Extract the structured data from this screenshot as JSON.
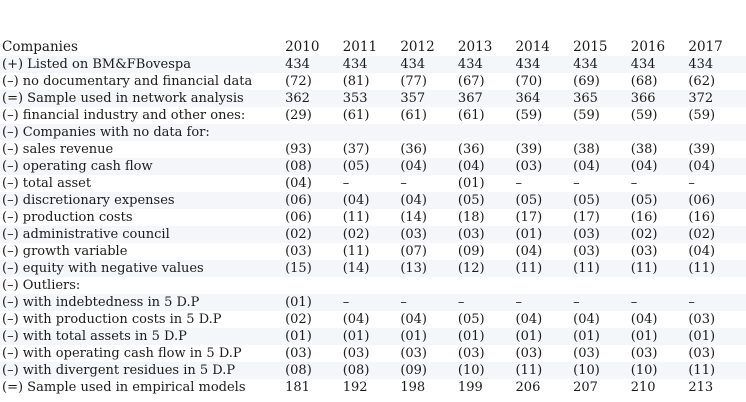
{
  "page": {
    "background_color": "#ffffff",
    "stripe_color": "#f4f6f9",
    "text_color": "#1a1a1a"
  },
  "table": {
    "header": {
      "label": "Companies",
      "years": [
        "2010",
        "2011",
        "2012",
        "2013",
        "2014",
        "2015",
        "2016",
        "2017"
      ]
    },
    "rows": [
      {
        "label": "(+) Listed on BM&FBovespa",
        "values": [
          "434",
          "434",
          "434",
          "434",
          "434",
          "434",
          "434",
          "434"
        ]
      },
      {
        "label": "(–) no documentary and financial data",
        "values": [
          "(72)",
          "(81)",
          "(77)",
          "(67)",
          "(70)",
          "(69)",
          "(68)",
          "(62)"
        ]
      },
      {
        "label": "(=) Sample used in network analysis",
        "values": [
          "362",
          "353",
          "357",
          "367",
          "364",
          "365",
          "366",
          "372"
        ]
      },
      {
        "label": "(–) financial industry and other ones:",
        "values": [
          "(29)",
          "(61)",
          "(61)",
          "(61)",
          "(59)",
          "(59)",
          "(59)",
          "(59)"
        ]
      },
      {
        "label": "(–) Companies with no data for:",
        "values": [
          "",
          "",
          "",
          "",
          "",
          "",
          "",
          ""
        ]
      },
      {
        "label": "(–) sales revenue",
        "values": [
          "(93)",
          "(37)",
          "(36)",
          "(36)",
          "(39)",
          "(38)",
          "(38)",
          "(39)"
        ]
      },
      {
        "label": "(–) operating cash flow",
        "values": [
          "(08)",
          "(05)",
          "(04)",
          "(04)",
          "(03)",
          "(04)",
          "(04)",
          "(04)"
        ]
      },
      {
        "label": "(–) total asset",
        "values": [
          "(04)",
          "–",
          "–",
          "(01)",
          "–",
          "–",
          "–",
          "–"
        ]
      },
      {
        "label": "(–) discretionary expenses",
        "values": [
          "(06)",
          "(04)",
          "(04)",
          "(05)",
          "(05)",
          "(05)",
          "(05)",
          "(06)"
        ]
      },
      {
        "label": "(–) production costs",
        "values": [
          "(06)",
          "(11)",
          "(14)",
          "(18)",
          "(17)",
          "(17)",
          "(16)",
          "(16)"
        ]
      },
      {
        "label": "(–) administrative council",
        "values": [
          "(02)",
          "(02)",
          "(03)",
          "(03)",
          "(01)",
          "(03)",
          "(02)",
          "(02)"
        ]
      },
      {
        "label": "(–) growth variable",
        "values": [
          "(03)",
          "(11)",
          "(07)",
          "(09)",
          "(04)",
          "(03)",
          "(03)",
          "(04)"
        ]
      },
      {
        "label": "(–) equity with negative values",
        "values": [
          "(15)",
          "(14)",
          "(13)",
          "(12)",
          "(11)",
          "(11)",
          "(11)",
          "(11)"
        ]
      },
      {
        "label": "(–) Outliers:",
        "values": [
          "",
          "",
          "",
          "",
          "",
          "",
          "",
          ""
        ]
      },
      {
        "label": "(–) with indebtedness in 5 D.P",
        "values": [
          "(01)",
          "–",
          "–",
          "–",
          "–",
          "–",
          "–",
          "–"
        ]
      },
      {
        "label": "(–) with production costs in 5 D.P",
        "values": [
          "(02)",
          "(04)",
          "(04)",
          "(05)",
          "(04)",
          "(04)",
          "(04)",
          "(03)"
        ]
      },
      {
        "label": "(–) with total assets in 5 D.P",
        "values": [
          "(01)",
          "(01)",
          "(01)",
          "(01)",
          "(01)",
          "(01)",
          "(01)",
          "(01)"
        ]
      },
      {
        "label": "(–) with operating cash flow in 5 D.P",
        "values": [
          "(03)",
          "(03)",
          "(03)",
          "(03)",
          "(03)",
          "(03)",
          "(03)",
          "(03)"
        ]
      },
      {
        "label": "(–) with divergent residues in 5 D.P",
        "values": [
          "(08)",
          "(08)",
          "(09)",
          "(10)",
          "(11)",
          "(10)",
          "(10)",
          "(11)"
        ]
      },
      {
        "label": "(=) Sample used in empirical models",
        "values": [
          "181",
          "192",
          "198",
          "199",
          "206",
          "207",
          "210",
          "213"
        ]
      }
    ]
  }
}
